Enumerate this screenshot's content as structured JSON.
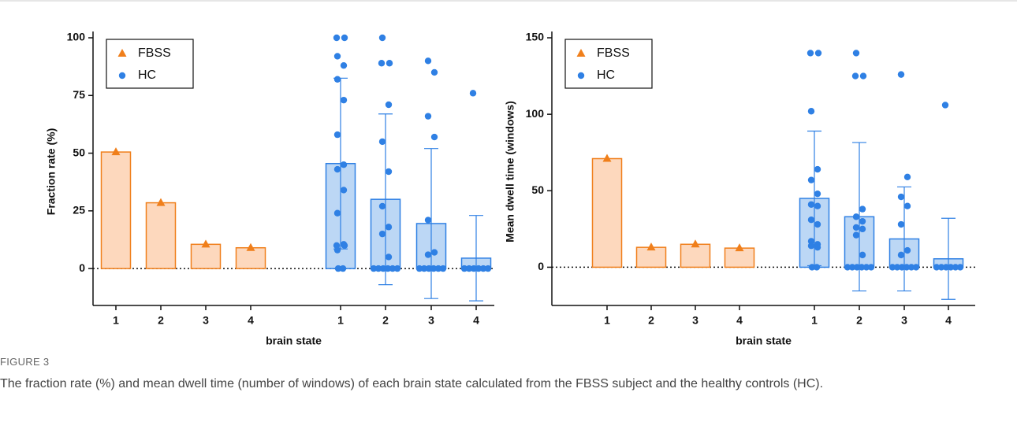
{
  "chart_data": [
    {
      "type": "bar",
      "y_label": "Fraction rate (%)",
      "x_label": "brain state",
      "ylim": [
        -16,
        100
      ],
      "yticks": [
        0,
        25,
        50,
        75,
        100
      ],
      "legend": "upper left",
      "categories": [
        "1",
        "2",
        "3",
        "4"
      ],
      "series": [
        {
          "name": "FBSS",
          "color": "#f07f1b",
          "fill": "#fdd8bd",
          "marker": "triangle",
          "values": [
            50.5,
            28.5,
            10.5,
            9
          ]
        },
        {
          "name": "HC",
          "color": "#2f80e4",
          "fill": "#bcd7f5",
          "marker": "circle",
          "values": [
            45.5,
            30,
            19.5,
            4.5
          ],
          "errors": [
            37,
            37,
            32.5,
            18.5
          ],
          "points": [
            [
              100,
              100,
              92,
              88,
              82,
              73,
              58,
              45,
              43,
              34,
              24,
              10.5,
              10,
              10,
              8,
              0,
              0
            ],
            [
              100,
              89,
              89,
              71,
              55,
              42,
              27,
              18,
              15,
              5,
              0,
              0,
              0,
              0,
              0,
              0
            ],
            [
              90,
              85,
              66,
              57,
              21,
              7,
              6,
              0,
              0,
              0,
              0,
              0,
              0
            ],
            [
              76,
              0,
              0,
              0,
              0,
              0,
              0
            ]
          ]
        }
      ]
    },
    {
      "type": "bar",
      "y_label": "Mean dwell time (windows)",
      "x_label": "brain state",
      "ylim": [
        -25,
        150
      ],
      "yticks": [
        0,
        50,
        100,
        150
      ],
      "legend": "upper left",
      "categories": [
        "1",
        "2",
        "3",
        "4"
      ],
      "series": [
        {
          "name": "FBSS",
          "color": "#f07f1b",
          "fill": "#fdd8bd",
          "marker": "triangle",
          "values": [
            71,
            13,
            15,
            12.5
          ]
        },
        {
          "name": "HC",
          "color": "#2f80e4",
          "fill": "#bcd7f5",
          "marker": "circle",
          "values": [
            45,
            33,
            18.5,
            5.5
          ],
          "errors": [
            44,
            48.5,
            34,
            26.5
          ],
          "points": [
            [
              140,
              140,
              102,
              64,
              57,
              48,
              41,
              40,
              31,
              28,
              17,
              15,
              14,
              13,
              0,
              0
            ],
            [
              140,
              125,
              125,
              38,
              33,
              30,
              26,
              25,
              21,
              8,
              0,
              0,
              0,
              0,
              0,
              0
            ],
            [
              126,
              59,
              46,
              40,
              28,
              11,
              8,
              0,
              0,
              0,
              0,
              0,
              0
            ],
            [
              106,
              0,
              0,
              0,
              0,
              0,
              0
            ]
          ]
        }
      ]
    }
  ],
  "figure": {
    "label": "FIGURE 3",
    "caption": "The fraction rate (%) and mean dwell time (number of windows) of each brain state calculated from the FBSS subject and the healthy controls (HC)."
  }
}
